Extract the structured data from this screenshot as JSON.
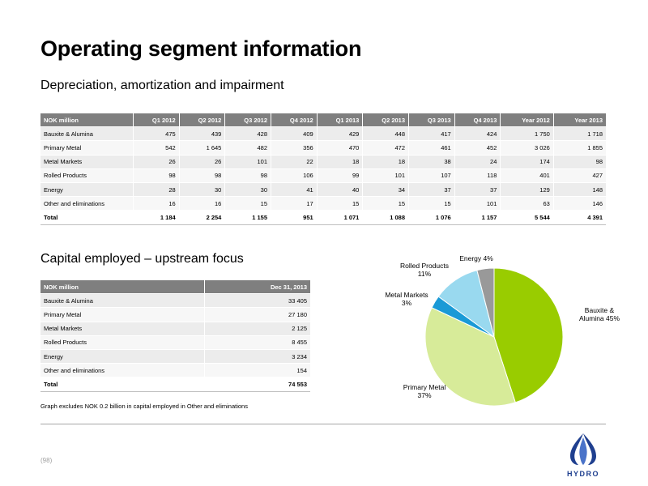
{
  "page": {
    "title": "Operating segment information",
    "subtitle_depreciation": "Depreciation, amortization and impairment",
    "subtitle_capital": "Capital employed – upstream focus",
    "note": "Graph excludes NOK 0.2 billion in capital employed in Other and eliminations",
    "page_number": "(98)",
    "logo_text": "HYDRO"
  },
  "depreciation_table": {
    "headers": [
      "NOK million",
      "Q1 2012",
      "Q2 2012",
      "Q3 2012",
      "Q4 2012",
      "Q1 2013",
      "Q2 2013",
      "Q3 2013",
      "Q4 2013",
      "Year 2012",
      "Year 2013"
    ],
    "rows": [
      [
        "Bauxite & Alumina",
        "475",
        "439",
        "428",
        "409",
        "429",
        "448",
        "417",
        "424",
        "1 750",
        "1 718"
      ],
      [
        "Primary Metal",
        "542",
        "1 645",
        "482",
        "356",
        "470",
        "472",
        "461",
        "452",
        "3 026",
        "1 855"
      ],
      [
        "Metal Markets",
        "26",
        "26",
        "101",
        "22",
        "18",
        "18",
        "38",
        "24",
        "174",
        "98"
      ],
      [
        "Rolled Products",
        "98",
        "98",
        "98",
        "106",
        "99",
        "101",
        "107",
        "118",
        "401",
        "427"
      ],
      [
        "Energy",
        "28",
        "30",
        "30",
        "41",
        "40",
        "34",
        "37",
        "37",
        "129",
        "148"
      ],
      [
        "Other and eliminations",
        "16",
        "16",
        "15",
        "17",
        "15",
        "15",
        "15",
        "101",
        "63",
        "146"
      ],
      [
        "Total",
        "1 184",
        "2 254",
        "1 155",
        "951",
        "1 071",
        "1 088",
        "1 076",
        "1 157",
        "5 544",
        "4 391"
      ]
    ]
  },
  "capital_table": {
    "headers": [
      "NOK million",
      "Dec 31, 2013"
    ],
    "rows": [
      [
        "Bauxite & Alumina",
        "33 405"
      ],
      [
        "Primary Metal",
        "27 180"
      ],
      [
        "Metal Markets",
        "2 125"
      ],
      [
        "Rolled Products",
        "8 455"
      ],
      [
        "Energy",
        "3 234"
      ],
      [
        "Other and eliminations",
        "154"
      ],
      [
        "Total",
        "74 553"
      ]
    ]
  },
  "chart_data": {
    "type": "pie",
    "slices": [
      {
        "label_lines": [
          "Bauxite &",
          "Alumina 45%"
        ],
        "value": 45,
        "color": "#99cc00"
      },
      {
        "label_lines": [
          "Primary Metal",
          "37%"
        ],
        "value": 37,
        "color": "#d7eb99"
      },
      {
        "label_lines": [
          "Metal Markets",
          "3%"
        ],
        "value": 3,
        "color": "#1a9ad6"
      },
      {
        "label_lines": [
          "Rolled Products",
          "11%"
        ],
        "value": 11,
        "color": "#99d9ef"
      },
      {
        "label_lines": [
          "Energy 4%"
        ],
        "value": 4,
        "color": "#999999"
      }
    ]
  }
}
